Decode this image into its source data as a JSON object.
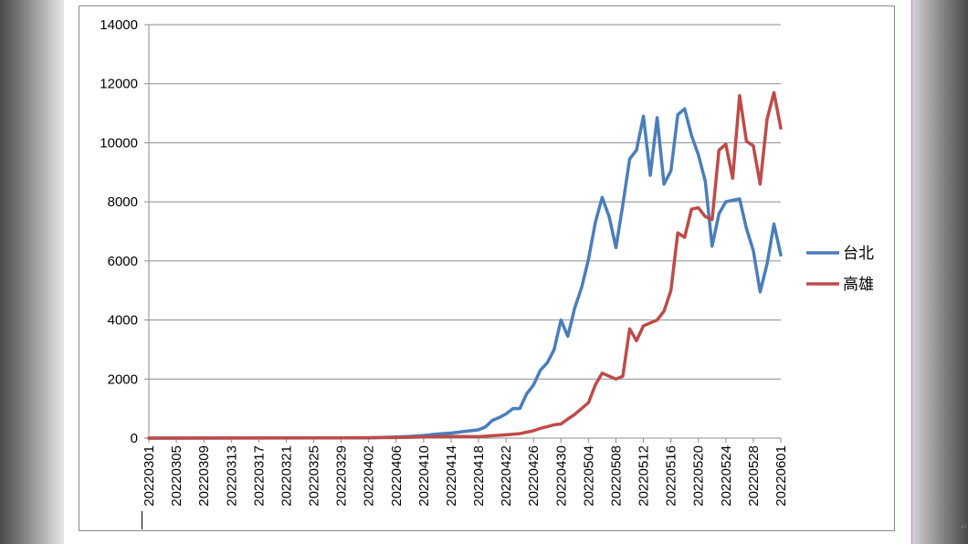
{
  "chart_data": {
    "type": "line",
    "title": "",
    "xlabel": "",
    "ylabel": "",
    "ylim": [
      0,
      14000
    ],
    "yticks": [
      0,
      2000,
      4000,
      6000,
      8000,
      10000,
      12000,
      14000
    ],
    "grid": true,
    "legend_position": "right",
    "x_start": "20220301",
    "x_end": "20220601",
    "x_tick_labels": [
      "20220301",
      "20220305",
      "20220309",
      "20220313",
      "20220317",
      "20220321",
      "20220325",
      "20220329",
      "20220402",
      "20220406",
      "20220410",
      "20220414",
      "20220418",
      "20220422",
      "20220426",
      "20220430",
      "20220504",
      "20220508",
      "20220512",
      "20220516",
      "20220520",
      "20220524",
      "20220528",
      "20220601"
    ],
    "series": [
      {
        "name": "台北",
        "color": "#4a7ebb",
        "points": [
          [
            "20220301",
            0
          ],
          [
            "20220402",
            10
          ],
          [
            "20220406",
            40
          ],
          [
            "20220408",
            60
          ],
          [
            "20220410",
            90
          ],
          [
            "20220412",
            140
          ],
          [
            "20220414",
            170
          ],
          [
            "20220416",
            230
          ],
          [
            "20220418",
            280
          ],
          [
            "20220419",
            380
          ],
          [
            "20220420",
            600
          ],
          [
            "20220421",
            700
          ],
          [
            "20220422",
            820
          ],
          [
            "20220423",
            1000
          ],
          [
            "20220424",
            1000
          ],
          [
            "20220425",
            1500
          ],
          [
            "20220426",
            1800
          ],
          [
            "20220427",
            2300
          ],
          [
            "20220428",
            2550
          ],
          [
            "20220429",
            3000
          ],
          [
            "20220430",
            4000
          ],
          [
            "20220501",
            3450
          ],
          [
            "20220502",
            4400
          ],
          [
            "20220503",
            5100
          ],
          [
            "20220504",
            6050
          ],
          [
            "20220505",
            7300
          ],
          [
            "20220506",
            8150
          ],
          [
            "20220507",
            7500
          ],
          [
            "20220508",
            6450
          ],
          [
            "20220509",
            7900
          ],
          [
            "20220510",
            9450
          ],
          [
            "20220511",
            9750
          ],
          [
            "20220512",
            10900
          ],
          [
            "20220513",
            8900
          ],
          [
            "20220514",
            10850
          ],
          [
            "20220515",
            8600
          ],
          [
            "20220516",
            9050
          ],
          [
            "20220517",
            10950
          ],
          [
            "20220518",
            11150
          ],
          [
            "20220519",
            10250
          ],
          [
            "20220520",
            9600
          ],
          [
            "20220521",
            8700
          ],
          [
            "20220522",
            6500
          ],
          [
            "20220523",
            7600
          ],
          [
            "20220524",
            8000
          ],
          [
            "20220525",
            8050
          ],
          [
            "20220526",
            8100
          ],
          [
            "20220527",
            7100
          ],
          [
            "20220528",
            6350
          ],
          [
            "20220529",
            4950
          ],
          [
            "20220530",
            5900
          ],
          [
            "20220531",
            7250
          ],
          [
            "20220601",
            6200
          ]
        ]
      },
      {
        "name": "高雄",
        "color": "#be4b48",
        "points": [
          [
            "20220301",
            0
          ],
          [
            "20220325",
            10
          ],
          [
            "20220406",
            20
          ],
          [
            "20220410",
            40
          ],
          [
            "20220414",
            60
          ],
          [
            "20220418",
            50
          ],
          [
            "20220420",
            80
          ],
          [
            "20220422",
            110
          ],
          [
            "20220424",
            150
          ],
          [
            "20220425",
            200
          ],
          [
            "20220426",
            250
          ],
          [
            "20220427",
            330
          ],
          [
            "20220428",
            390
          ],
          [
            "20220429",
            450
          ],
          [
            "20220430",
            480
          ],
          [
            "20220501",
            650
          ],
          [
            "20220502",
            800
          ],
          [
            "20220503",
            1000
          ],
          [
            "20220504",
            1200
          ],
          [
            "20220505",
            1800
          ],
          [
            "20220506",
            2200
          ],
          [
            "20220507",
            2100
          ],
          [
            "20220508",
            2000
          ],
          [
            "20220509",
            2100
          ],
          [
            "20220510",
            3700
          ],
          [
            "20220511",
            3300
          ],
          [
            "20220512",
            3800
          ],
          [
            "20220513",
            3900
          ],
          [
            "20220514",
            4000
          ],
          [
            "20220515",
            4300
          ],
          [
            "20220516",
            5000
          ],
          [
            "20220517",
            6950
          ],
          [
            "20220518",
            6800
          ],
          [
            "20220519",
            7750
          ],
          [
            "20220520",
            7800
          ],
          [
            "20220521",
            7500
          ],
          [
            "20220522",
            7400
          ],
          [
            "20220523",
            9750
          ],
          [
            "20220524",
            9950
          ],
          [
            "20220525",
            8800
          ],
          [
            "20220526",
            11600
          ],
          [
            "20220527",
            10050
          ],
          [
            "20220528",
            9900
          ],
          [
            "20220529",
            8600
          ],
          [
            "20220530",
            10800
          ],
          [
            "20220531",
            11700
          ],
          [
            "20220601",
            10500
          ]
        ]
      }
    ]
  }
}
